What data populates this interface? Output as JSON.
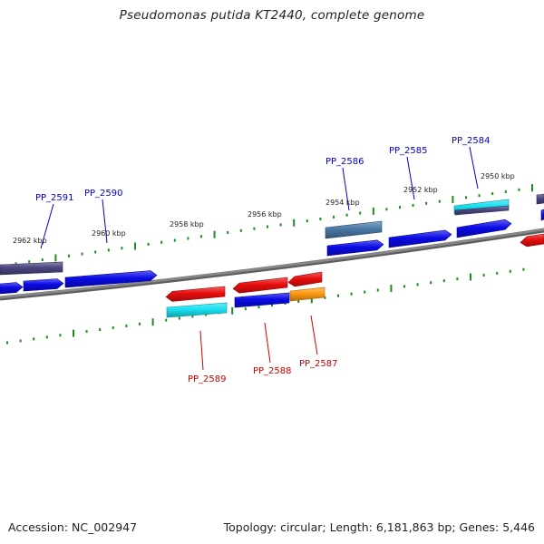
{
  "title": "Pseudomonas putida KT2440, complete genome",
  "footer": {
    "accession": "Accession: NC_002947",
    "topology": "Topology: circular; Length: 6,181,863 bp; Genes: 5,446"
  },
  "colors": {
    "backbone": "#888888",
    "ticks": "#1e8c1e",
    "label_top": "#0000cc",
    "label_bottom": "#cc0000",
    "blue": "#0a0ae6",
    "red": "#e80d0d",
    "cyan": "#19e1f0",
    "orange": "#ff9a12",
    "steel": "#4878a4",
    "slate": "#4a4580"
  },
  "kbp_labels": [
    "2962 kbp",
    "2960 kbp",
    "2958 kbp",
    "2956 kbp",
    "2954 kbp",
    "2952 kbp",
    "2950 kbp"
  ],
  "top_genes": [
    "PP_2591",
    "PP_2590",
    "PP_2586",
    "PP_2585",
    "PP_2584"
  ],
  "bottom_genes": [
    "PP_2589",
    "PP_2588",
    "PP_2587"
  ]
}
